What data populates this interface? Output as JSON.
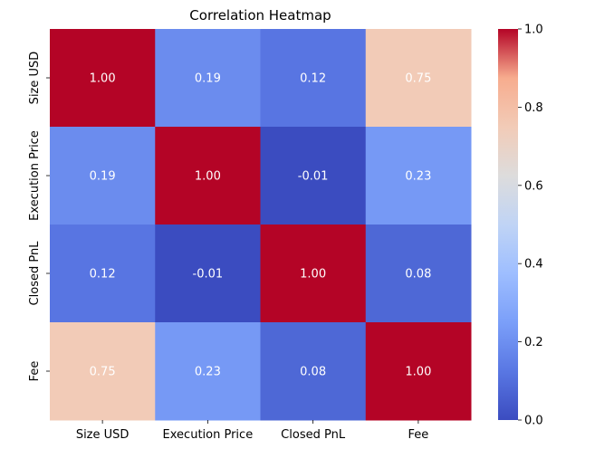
{
  "chart_data": {
    "type": "heatmap",
    "title": "Correlation Heatmap",
    "xlabel": "",
    "ylabel": "",
    "x_categories": [
      "Size USD",
      "Execution Price",
      "Closed PnL",
      "Fee"
    ],
    "y_categories": [
      "Size USD",
      "Execution Price",
      "Closed PnL",
      "Fee"
    ],
    "values": [
      [
        1.0,
        0.19,
        0.12,
        0.75
      ],
      [
        0.19,
        1.0,
        -0.01,
        0.23
      ],
      [
        0.12,
        -0.01,
        1.0,
        0.08
      ],
      [
        0.75,
        0.23,
        0.08,
        1.0
      ]
    ],
    "annotations": [
      [
        "1.00",
        "0.19",
        "0.12",
        "0.75"
      ],
      [
        "0.19",
        "1.00",
        "-0.01",
        "0.23"
      ],
      [
        "0.12",
        "-0.01",
        "1.00",
        "0.08"
      ],
      [
        "0.75",
        "0.23",
        "0.08",
        "1.00"
      ]
    ],
    "colormap": "coolwarm",
    "colorbar": {
      "range": [
        0.0,
        1.0
      ],
      "ticks": [
        "0.0",
        "0.2",
        "0.4",
        "0.6",
        "0.8",
        "1.0"
      ],
      "tick_values": [
        0.0,
        0.2,
        0.4,
        0.6,
        0.8,
        1.0
      ],
      "position": "right"
    },
    "grid": false
  }
}
